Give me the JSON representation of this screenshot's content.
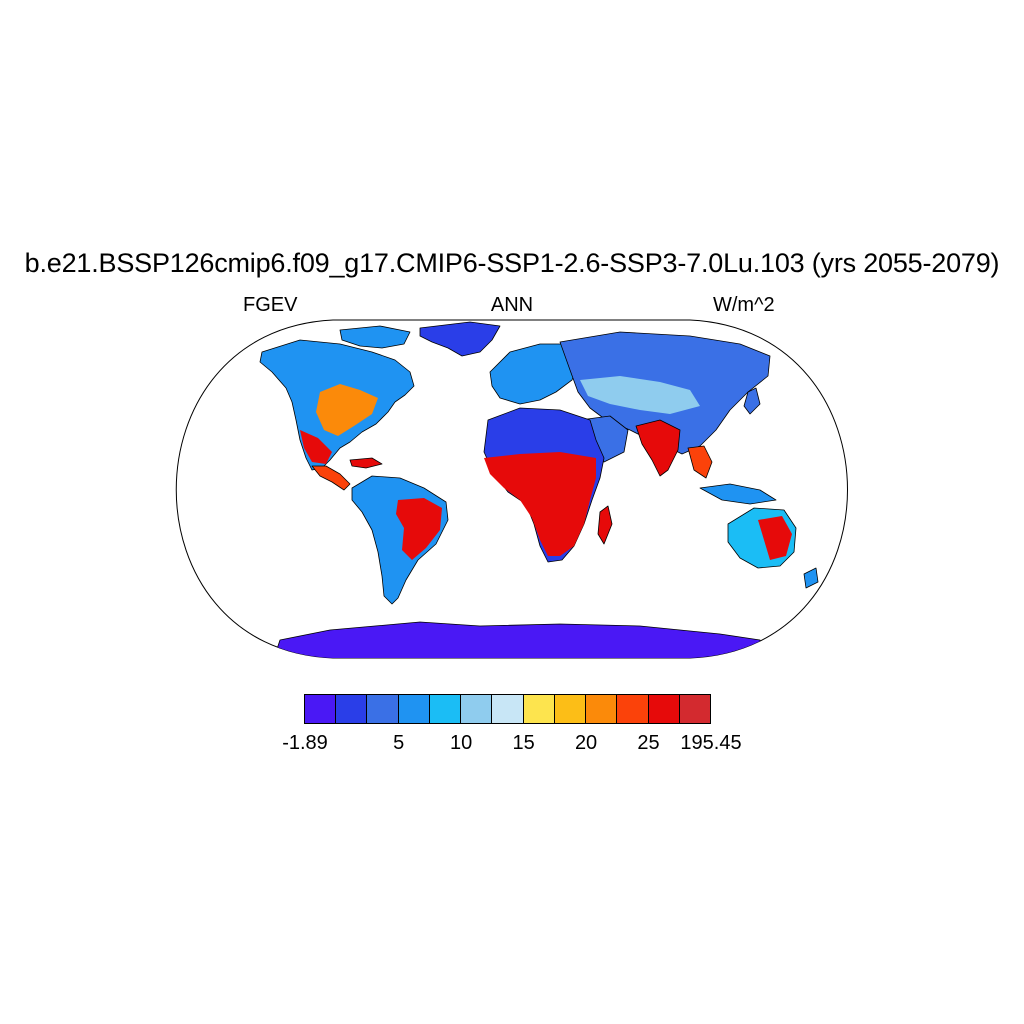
{
  "title": "b.e21.BSSP126cmip6.f09_g17.CMIP6-SSP1-2.6-SSP3-7.0Lu.103 (yrs 2055-2079)",
  "variable": "FGEV",
  "season": "ANN",
  "units": "W/m^2",
  "projection": "Robinson",
  "legend": {
    "colors": [
      "#4a18f5",
      "#2a3ee8",
      "#3a70e6",
      "#1f93f2",
      "#1bbdf5",
      "#8fccee",
      "#c8e6f6",
      "#fde44e",
      "#fcbe17",
      "#fb8a0a",
      "#fb420a",
      "#e60a0a",
      "#d32a2f"
    ],
    "labels": [
      "-1.89",
      "5",
      "10",
      "15",
      "20",
      "25",
      "195.45"
    ],
    "label_positions": [
      0,
      3,
      5,
      7,
      9,
      11,
      13
    ]
  },
  "colors": {
    "land_outline": "#000000",
    "ocean": "#ffffff"
  }
}
